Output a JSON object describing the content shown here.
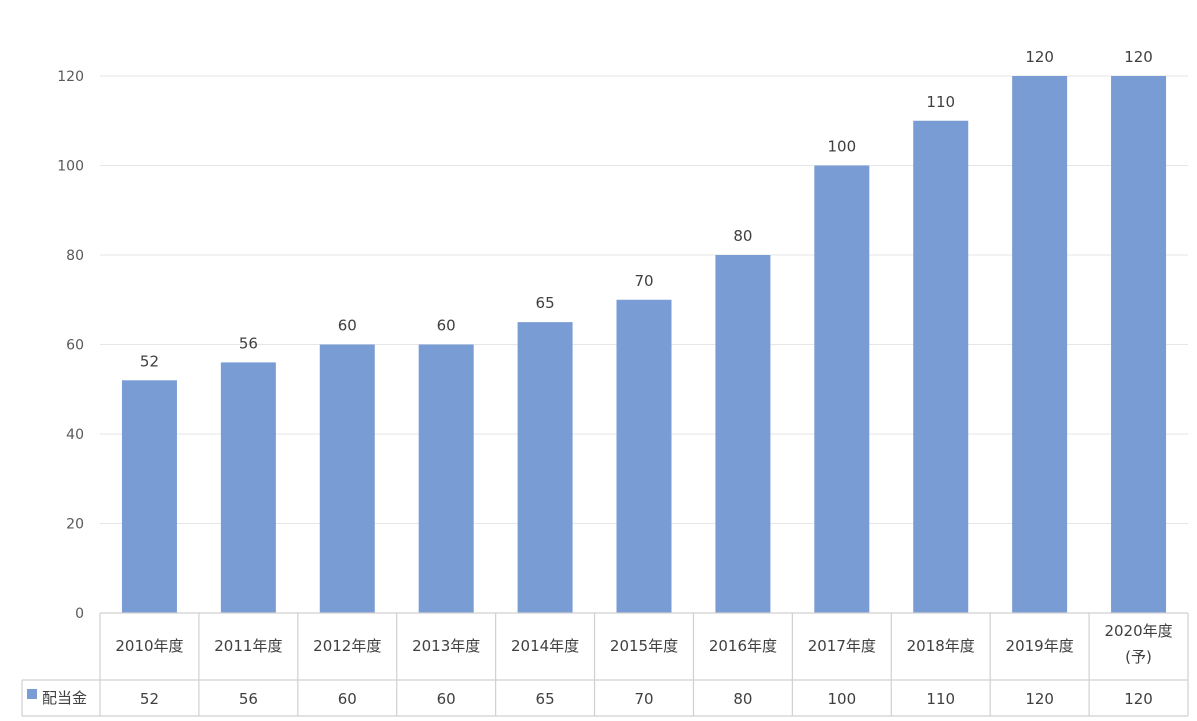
{
  "chart_data": {
    "type": "bar",
    "categories": [
      "2010年度",
      "2011年度",
      "2012年度",
      "2013年度",
      "2014年度",
      "2015年度",
      "2016年度",
      "2017年度",
      "2018年度",
      "2019年度",
      "2020年度(予)"
    ],
    "category_lines": [
      [
        "2010年度"
      ],
      [
        "2011年度"
      ],
      [
        "2012年度"
      ],
      [
        "2013年度"
      ],
      [
        "2014年度"
      ],
      [
        "2015年度"
      ],
      [
        "2016年度"
      ],
      [
        "2017年度"
      ],
      [
        "2018年度"
      ],
      [
        "2019年度"
      ],
      [
        "2020年度",
        "(予)"
      ]
    ],
    "series": [
      {
        "name": "配当金",
        "values": [
          52,
          56,
          60,
          60,
          65,
          70,
          80,
          100,
          110,
          120,
          120
        ],
        "color": "#7a9cd4"
      }
    ],
    "ylim": [
      0,
      120
    ],
    "yticks": [
      0,
      20,
      40,
      60,
      80,
      100,
      120
    ],
    "grid": true,
    "data_labels": true,
    "legend": "data-table",
    "title": "",
    "xlabel": "",
    "ylabel": ""
  }
}
